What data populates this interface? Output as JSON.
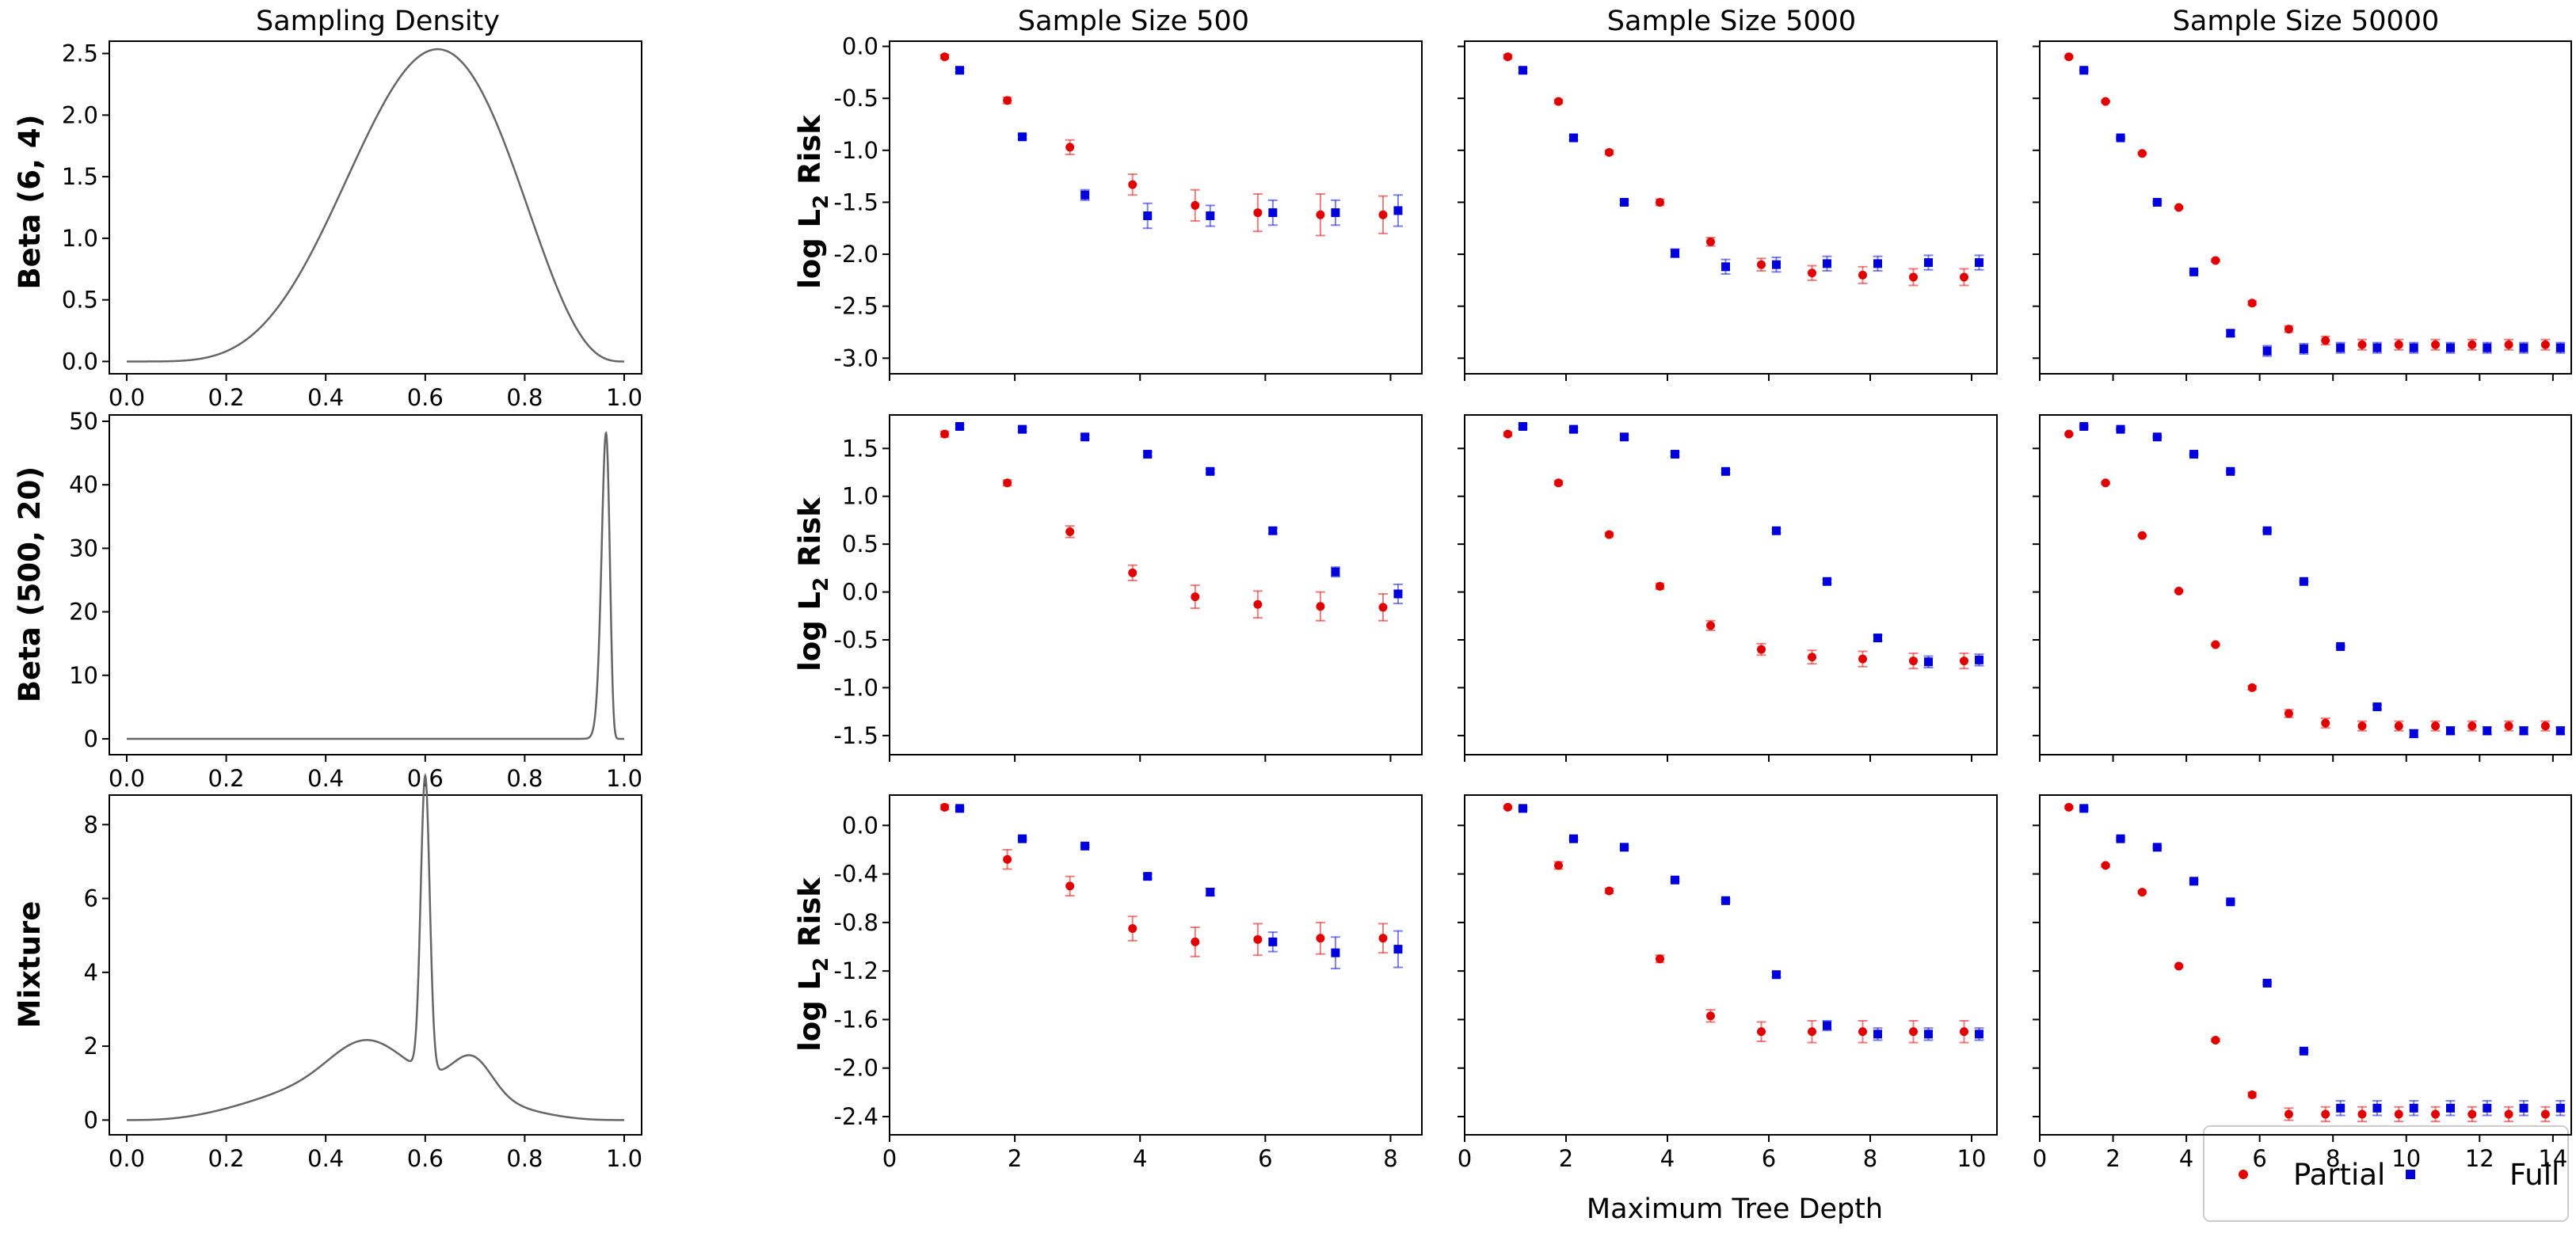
{
  "figure": {
    "density_column_title": "Sampling Density",
    "x_axis_label": "Maximum Tree Depth",
    "y_axis_label": {
      "prefix": "log L",
      "subscript": "2",
      "suffix": " Risk"
    },
    "row_labels": [
      "Beta (6, 4)",
      "Beta (500, 20)",
      "Mixture"
    ],
    "column_titles": [
      "Sample Size 500",
      "Sample Size 5000",
      "Sample Size 50000"
    ],
    "legend": [
      {
        "label": "Partial",
        "color": "#e00000",
        "marker": "circle"
      },
      {
        "label": "Full",
        "color": "#0000dd",
        "marker": "square"
      }
    ],
    "density_line_color": "#666666"
  },
  "chart_data": [
    {
      "type": "line",
      "title": "Sampling Density",
      "row_label": "Beta (6, 4)",
      "xlim": [
        0,
        1
      ],
      "ylim": [
        -0.1,
        2.6
      ],
      "xticks": [
        0.0,
        0.2,
        0.4,
        0.6,
        0.8,
        1.0
      ],
      "yticks": [
        0.0,
        0.5,
        1.0,
        1.5,
        2.0,
        2.5
      ],
      "decimals": 1,
      "curve": {
        "kind": "beta",
        "a": 6,
        "b": 4
      }
    },
    {
      "type": "line",
      "row_label": "Beta (500, 20)",
      "xlim": [
        0,
        1
      ],
      "ylim": [
        -2.5,
        51
      ],
      "xticks": [
        0.0,
        0.2,
        0.4,
        0.6,
        0.8,
        1.0
      ],
      "yticks": [
        0,
        10,
        20,
        30,
        40,
        50
      ],
      "decimals": 0,
      "curve": {
        "kind": "beta",
        "a": 500,
        "b": 20
      }
    },
    {
      "type": "line",
      "row_label": "Mixture",
      "xlim": [
        0,
        1
      ],
      "ylim": [
        -0.4,
        8.8
      ],
      "xticks": [
        0.0,
        0.2,
        0.4,
        0.6,
        0.8,
        1.0
      ],
      "yticks": [
        0,
        2,
        4,
        6,
        8
      ],
      "decimals": 0,
      "curve": {
        "kind": "mixture",
        "components": [
          {
            "type": "beta",
            "a": 4,
            "b": 4,
            "w": 0.55
          },
          {
            "type": "normal",
            "mu": 0.6,
            "sigma": 0.009,
            "w": 0.18
          },
          {
            "type": "normal",
            "mu": 0.695,
            "sigma": 0.04,
            "w": 0.1
          },
          {
            "type": "normal",
            "mu": 0.48,
            "sigma": 0.07,
            "w": 0.17
          }
        ]
      }
    },
    {
      "type": "scatter",
      "title": "Sample Size 500",
      "row": 0,
      "xlim": [
        0,
        8.5
      ],
      "ylim": [
        -3.15,
        0.05
      ],
      "yticks": [
        0.0,
        -0.5,
        -1.0,
        -1.5,
        -2.0,
        -2.5,
        -3.0
      ],
      "decimals": 1,
      "series": [
        {
          "name": "Partial",
          "x": [
            1,
            2,
            3,
            4,
            5,
            6,
            7,
            8
          ],
          "y": [
            -0.1,
            -0.52,
            -0.97,
            -1.33,
            -1.53,
            -1.6,
            -1.62,
            -1.62
          ],
          "err": [
            0.02,
            0.03,
            0.07,
            0.1,
            0.15,
            0.18,
            0.2,
            0.18
          ]
        },
        {
          "name": "Full",
          "x": [
            1,
            2,
            3,
            4,
            5,
            6,
            7,
            8
          ],
          "y": [
            -0.23,
            -0.87,
            -1.43,
            -1.63,
            -1.63,
            -1.6,
            -1.6,
            -1.58
          ],
          "err": [
            0.02,
            0.02,
            0.05,
            0.12,
            0.1,
            0.12,
            0.12,
            0.15
          ]
        }
      ]
    },
    {
      "type": "scatter",
      "title": "Sample Size 5000",
      "row": 0,
      "xlim": [
        0,
        10.5
      ],
      "ylim": [
        -3.15,
        0.05
      ],
      "yticks": [
        0.0,
        -0.5,
        -1.0,
        -1.5,
        -2.0,
        -2.5,
        -3.0
      ],
      "decimals": 1,
      "series": [
        {
          "name": "Partial",
          "x": [
            1,
            2,
            3,
            4,
            5,
            6,
            7,
            8,
            9,
            10
          ],
          "y": [
            -0.1,
            -0.53,
            -1.02,
            -1.5,
            -1.88,
            -2.1,
            -2.18,
            -2.2,
            -2.22,
            -2.22
          ],
          "err": [
            0.02,
            0.02,
            0.02,
            0.03,
            0.04,
            0.06,
            0.07,
            0.08,
            0.08,
            0.08
          ]
        },
        {
          "name": "Full",
          "x": [
            1,
            2,
            3,
            4,
            5,
            6,
            7,
            8,
            9,
            10
          ],
          "y": [
            -0.23,
            -0.88,
            -1.5,
            -1.99,
            -2.12,
            -2.1,
            -2.09,
            -2.09,
            -2.08,
            -2.08
          ],
          "err": [
            0.02,
            0.02,
            0.02,
            0.04,
            0.07,
            0.07,
            0.07,
            0.07,
            0.07,
            0.07
          ]
        }
      ]
    },
    {
      "type": "scatter",
      "title": "Sample Size 50000",
      "row": 0,
      "xlim": [
        0,
        14.5
      ],
      "ylim": [
        -3.15,
        0.05
      ],
      "yticks": [
        0.0,
        -0.5,
        -1.0,
        -1.5,
        -2.0,
        -2.5,
        -3.0
      ],
      "decimals": 1,
      "series": [
        {
          "name": "Partial",
          "x": [
            1,
            2,
            3,
            4,
            5,
            6,
            7,
            8,
            9,
            10,
            11,
            12,
            13,
            14
          ],
          "y": [
            -0.1,
            -0.53,
            -1.03,
            -1.55,
            -2.06,
            -2.47,
            -2.72,
            -2.83,
            -2.87,
            -2.87,
            -2.87,
            -2.87,
            -2.87,
            -2.87
          ],
          "err": [
            0.01,
            0.01,
            0.01,
            0.01,
            0.01,
            0.02,
            0.03,
            0.04,
            0.05,
            0.05,
            0.05,
            0.05,
            0.05,
            0.05
          ]
        },
        {
          "name": "Full",
          "x": [
            1,
            2,
            3,
            4,
            5,
            6,
            7,
            8,
            9,
            10,
            11,
            12,
            13,
            14
          ],
          "y": [
            -0.23,
            -0.88,
            -1.5,
            -2.17,
            -2.76,
            -2.93,
            -2.91,
            -2.9,
            -2.9,
            -2.9,
            -2.9,
            -2.9,
            -2.9,
            -2.9
          ],
          "err": [
            0.01,
            0.01,
            0.01,
            0.01,
            0.03,
            0.05,
            0.05,
            0.05,
            0.05,
            0.05,
            0.05,
            0.05,
            0.05,
            0.05
          ]
        }
      ]
    },
    {
      "type": "scatter",
      "row": 1,
      "xlim": [
        0,
        8.5
      ],
      "ylim": [
        -1.7,
        1.85
      ],
      "yticks": [
        1.5,
        1.0,
        0.5,
        0.0,
        -0.5,
        -1.0,
        -1.5
      ],
      "decimals": 1,
      "series": [
        {
          "name": "Partial",
          "x": [
            1,
            2,
            3,
            4,
            5,
            6,
            7,
            8
          ],
          "y": [
            1.65,
            1.14,
            0.63,
            0.2,
            -0.05,
            -0.13,
            -0.15,
            -0.16
          ],
          "err": [
            0.03,
            0.03,
            0.06,
            0.08,
            0.12,
            0.14,
            0.15,
            0.14
          ]
        },
        {
          "name": "Full",
          "x": [
            1,
            2,
            3,
            4,
            5,
            6,
            7,
            8
          ],
          "y": [
            1.73,
            1.7,
            1.62,
            1.44,
            1.26,
            0.64,
            0.21,
            -0.02
          ],
          "err": [
            0.02,
            0.02,
            0.02,
            0.02,
            0.02,
            0.03,
            0.05,
            0.1
          ]
        }
      ]
    },
    {
      "type": "scatter",
      "row": 1,
      "xlim": [
        0,
        10.5
      ],
      "ylim": [
        -1.7,
        1.85
      ],
      "yticks": [
        1.5,
        1.0,
        0.5,
        0.0,
        -0.5,
        -1.0,
        -1.5
      ],
      "decimals": 1,
      "series": [
        {
          "name": "Partial",
          "x": [
            1,
            2,
            3,
            4,
            5,
            6,
            7,
            8,
            9,
            10
          ],
          "y": [
            1.65,
            1.14,
            0.6,
            0.06,
            -0.35,
            -0.6,
            -0.68,
            -0.7,
            -0.72,
            -0.72
          ],
          "err": [
            0.02,
            0.02,
            0.02,
            0.03,
            0.05,
            0.06,
            0.07,
            0.08,
            0.08,
            0.08
          ]
        },
        {
          "name": "Full",
          "x": [
            1,
            2,
            3,
            4,
            5,
            6,
            7,
            8,
            9,
            10
          ],
          "y": [
            1.73,
            1.7,
            1.62,
            1.44,
            1.26,
            0.64,
            0.11,
            -0.48,
            -0.73,
            -0.71
          ],
          "err": [
            0.02,
            0.02,
            0.02,
            0.02,
            0.02,
            0.02,
            0.02,
            0.03,
            0.06,
            0.06
          ]
        }
      ]
    },
    {
      "type": "scatter",
      "row": 1,
      "xlim": [
        0,
        14.5
      ],
      "ylim": [
        -1.7,
        1.85
      ],
      "yticks": [
        1.5,
        1.0,
        0.5,
        0.0,
        -0.5,
        -1.0,
        -1.5
      ],
      "decimals": 1,
      "series": [
        {
          "name": "Partial",
          "x": [
            1,
            2,
            3,
            4,
            5,
            6,
            7,
            8,
            9,
            10,
            11,
            12,
            13,
            14
          ],
          "y": [
            1.65,
            1.14,
            0.59,
            0.01,
            -0.55,
            -1.0,
            -1.27,
            -1.37,
            -1.4,
            -1.4,
            -1.4,
            -1.4,
            -1.4,
            -1.4
          ],
          "err": [
            0.01,
            0.01,
            0.01,
            0.01,
            0.01,
            0.02,
            0.04,
            0.05,
            0.05,
            0.05,
            0.05,
            0.05,
            0.05,
            0.05
          ]
        },
        {
          "name": "Full",
          "x": [
            1,
            2,
            3,
            4,
            5,
            6,
            7,
            8,
            9,
            10,
            11,
            12,
            13,
            14
          ],
          "y": [
            1.73,
            1.7,
            1.62,
            1.44,
            1.26,
            0.64,
            0.11,
            -0.57,
            -1.2,
            -1.48,
            -1.45,
            -1.45,
            -1.45,
            -1.45
          ],
          "err": [
            0.01,
            0.01,
            0.01,
            0.01,
            0.01,
            0.01,
            0.01,
            0.01,
            0.02,
            0.04,
            0.04,
            0.04,
            0.04,
            0.04
          ]
        }
      ]
    },
    {
      "type": "scatter",
      "row": 2,
      "xlim": [
        0,
        8.5
      ],
      "ylim": [
        -2.55,
        0.25
      ],
      "yticks": [
        0.0,
        -0.4,
        -0.8,
        -1.2,
        -1.6,
        -2.0,
        -2.4
      ],
      "decimals": 1,
      "series": [
        {
          "name": "Partial",
          "x": [
            1,
            2,
            3,
            4,
            5,
            6,
            7,
            8
          ],
          "y": [
            0.15,
            -0.28,
            -0.5,
            -0.85,
            -0.96,
            -0.94,
            -0.93,
            -0.93
          ],
          "err": [
            0.02,
            0.08,
            0.08,
            0.1,
            0.12,
            0.13,
            0.13,
            0.12
          ]
        },
        {
          "name": "Full",
          "x": [
            1,
            2,
            3,
            4,
            5,
            6,
            7,
            8
          ],
          "y": [
            0.14,
            -0.11,
            -0.17,
            -0.42,
            -0.55,
            -0.96,
            -1.05,
            -1.02
          ],
          "err": [
            0.01,
            0.01,
            0.01,
            0.02,
            0.03,
            0.08,
            0.13,
            0.15
          ]
        }
      ]
    },
    {
      "type": "scatter",
      "row": 2,
      "xlim": [
        0,
        10.5
      ],
      "ylim": [
        -2.55,
        0.25
      ],
      "yticks": [
        0.0,
        -0.4,
        -0.8,
        -1.2,
        -1.6,
        -2.0,
        -2.4
      ],
      "decimals": 1,
      "series": [
        {
          "name": "Partial",
          "x": [
            1,
            2,
            3,
            4,
            5,
            6,
            7,
            8,
            9,
            10
          ],
          "y": [
            0.15,
            -0.33,
            -0.54,
            -1.1,
            -1.57,
            -1.7,
            -1.7,
            -1.7,
            -1.7,
            -1.7
          ],
          "err": [
            0.01,
            0.03,
            0.02,
            0.03,
            0.05,
            0.08,
            0.09,
            0.09,
            0.09,
            0.09
          ]
        },
        {
          "name": "Full",
          "x": [
            1,
            2,
            3,
            4,
            5,
            6,
            7,
            8,
            9,
            10
          ],
          "y": [
            0.14,
            -0.11,
            -0.18,
            -0.45,
            -0.62,
            -1.23,
            -1.65,
            -1.72,
            -1.72,
            -1.72
          ],
          "err": [
            0.01,
            0.01,
            0.01,
            0.01,
            0.01,
            0.02,
            0.04,
            0.05,
            0.05,
            0.05
          ]
        }
      ]
    },
    {
      "type": "scatter",
      "row": 2,
      "xlim": [
        0,
        14.5
      ],
      "ylim": [
        -2.55,
        0.25
      ],
      "yticks": [
        0.0,
        -0.4,
        -0.8,
        -1.2,
        -1.6,
        -2.0,
        -2.4
      ],
      "decimals": 1,
      "series": [
        {
          "name": "Partial",
          "x": [
            1,
            2,
            3,
            4,
            5,
            6,
            7,
            8,
            9,
            10,
            11,
            12,
            13,
            14
          ],
          "y": [
            0.15,
            -0.33,
            -0.55,
            -1.16,
            -1.77,
            -2.22,
            -2.38,
            -2.38,
            -2.38,
            -2.38,
            -2.38,
            -2.38,
            -2.38,
            -2.38
          ],
          "err": [
            0.01,
            0.01,
            0.01,
            0.01,
            0.01,
            0.02,
            0.05,
            0.06,
            0.06,
            0.06,
            0.06,
            0.06,
            0.06,
            0.06
          ]
        },
        {
          "name": "Full",
          "x": [
            1,
            2,
            3,
            4,
            5,
            6,
            7,
            8,
            9,
            10,
            11,
            12,
            13,
            14
          ],
          "y": [
            0.14,
            -0.11,
            -0.18,
            -0.46,
            -0.63,
            -1.3,
            -1.86,
            -2.33,
            -2.33,
            -2.33,
            -2.33,
            -2.33,
            -2.33,
            -2.33
          ],
          "err": [
            0.01,
            0.01,
            0.01,
            0.01,
            0.01,
            0.01,
            0.01,
            0.06,
            0.06,
            0.06,
            0.06,
            0.06,
            0.06,
            0.06
          ]
        }
      ]
    }
  ]
}
